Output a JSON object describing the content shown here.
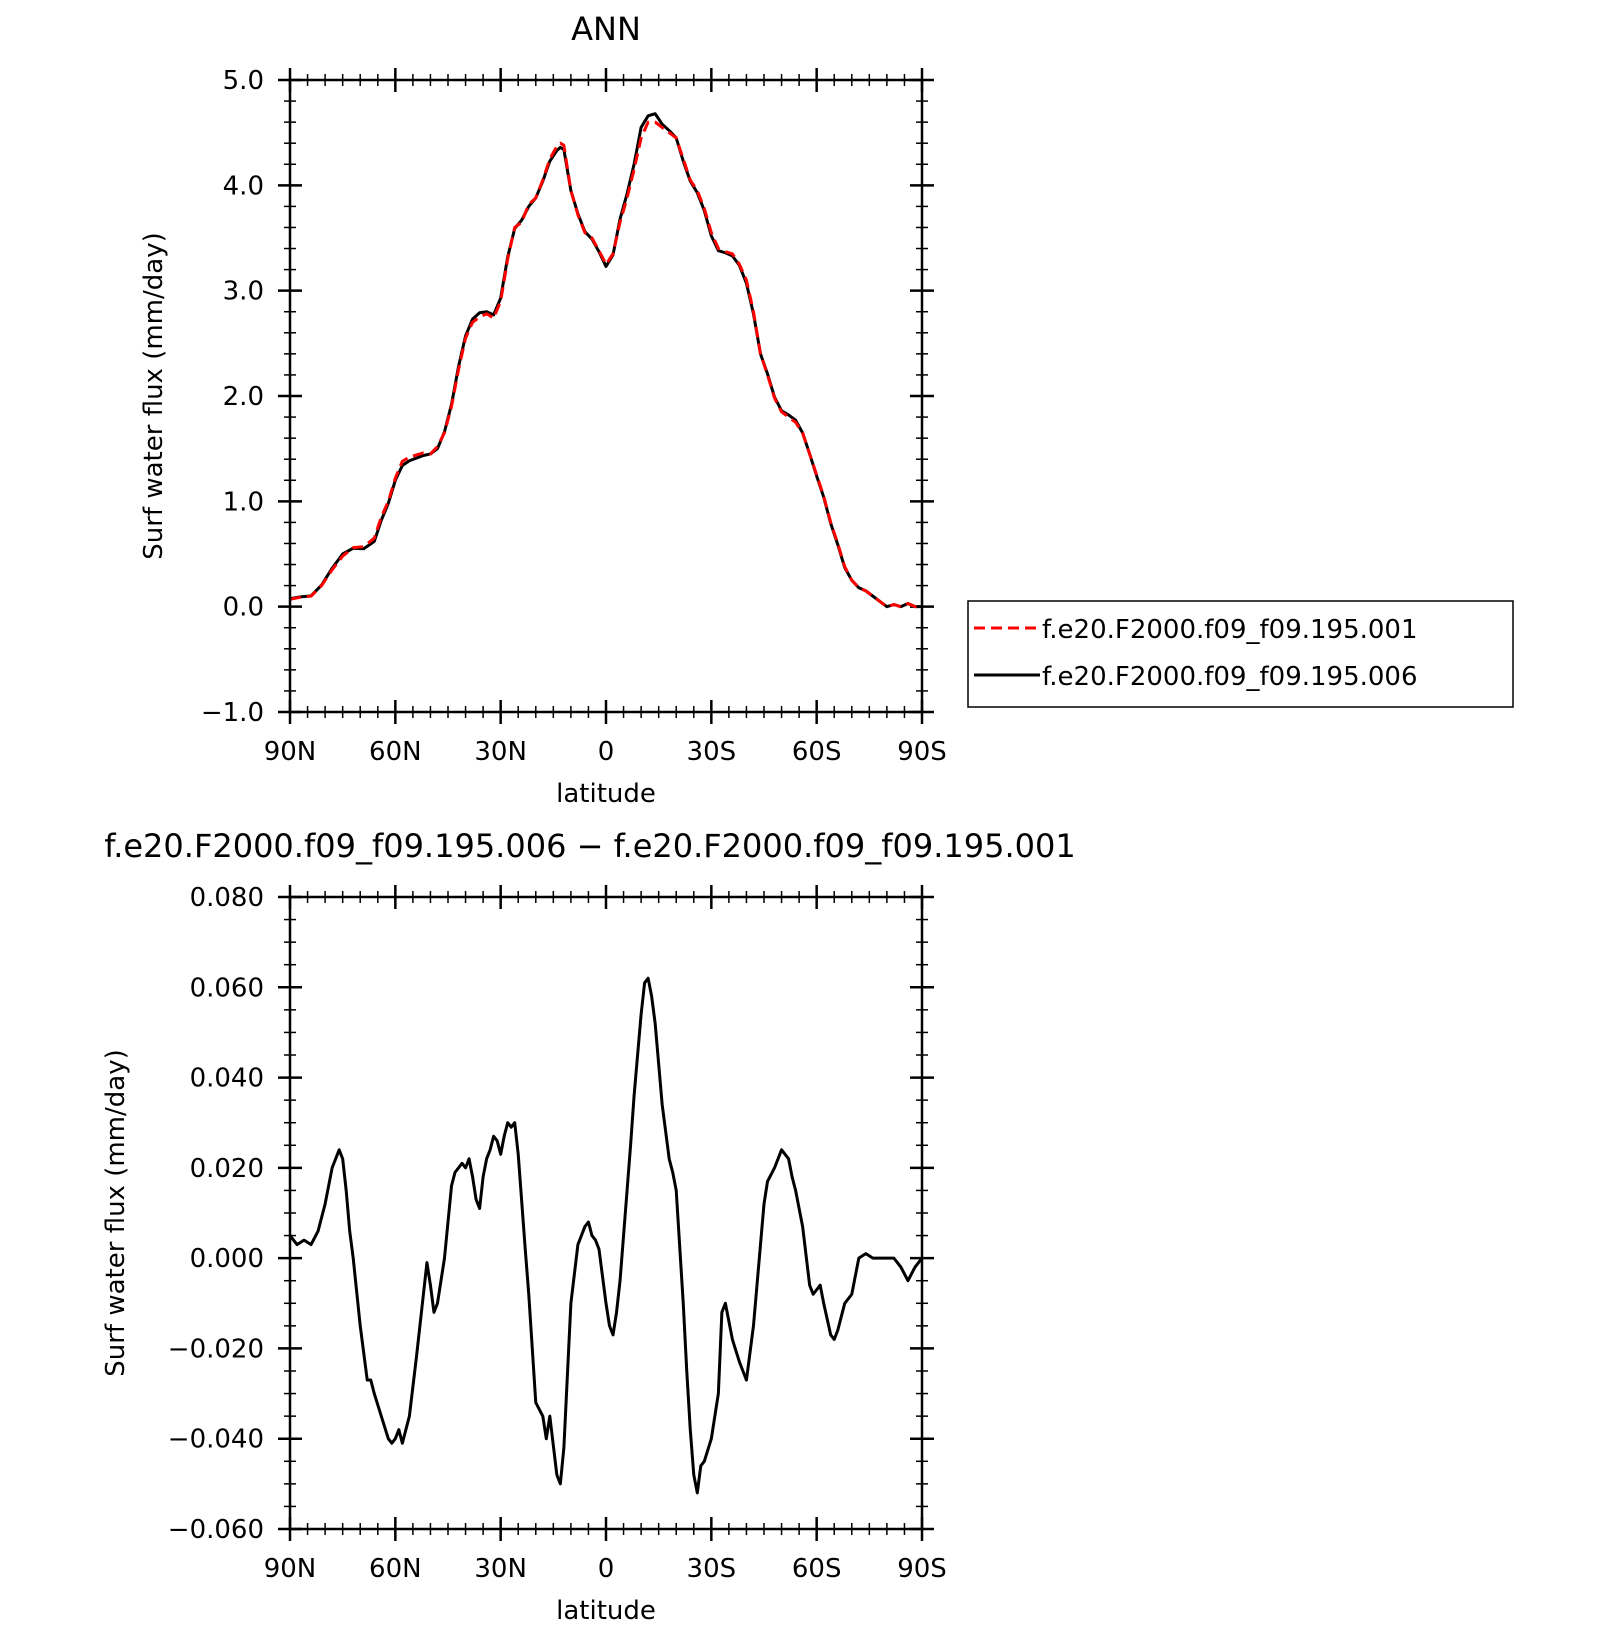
{
  "chart_data": [
    {
      "type": "line",
      "title": "ANN",
      "xlabel": "latitude",
      "ylabel": "Surf water flux (mm/day)",
      "xlim": [
        90,
        -90
      ],
      "ylim": [
        -1.0,
        5.0
      ],
      "x_ticks": [
        {
          "value": 90,
          "label": "90N"
        },
        {
          "value": 60,
          "label": "60N"
        },
        {
          "value": 30,
          "label": "30N"
        },
        {
          "value": 0,
          "label": "0"
        },
        {
          "value": -30,
          "label": "30S"
        },
        {
          "value": -60,
          "label": "60S"
        },
        {
          "value": -90,
          "label": "90S"
        }
      ],
      "y_ticks": [
        {
          "value": 5.0,
          "label": "5.0"
        },
        {
          "value": 4.0,
          "label": "4.0"
        },
        {
          "value": 3.0,
          "label": "3.0"
        },
        {
          "value": 2.0,
          "label": "2.0"
        },
        {
          "value": 1.0,
          "label": "1.0"
        },
        {
          "value": 0.0,
          "label": "0.0"
        },
        {
          "value": -1.0,
          "label": "−1.0"
        }
      ],
      "legend_position": "right",
      "x": [
        90,
        87,
        84,
        81,
        78,
        75,
        72,
        69,
        66,
        64,
        62,
        60,
        58,
        56,
        54,
        52,
        50,
        48,
        46,
        44,
        42,
        40,
        38,
        36,
        34,
        32,
        30,
        28,
        26,
        24,
        22,
        20,
        18,
        16,
        14,
        13,
        12,
        10,
        8,
        6,
        4,
        2,
        0,
        -2,
        -4,
        -6,
        -8,
        -10,
        -12,
        -14,
        -16,
        -18,
        -20,
        -22,
        -24,
        -26,
        -28,
        -30,
        -32,
        -34,
        -36,
        -38,
        -40,
        -42,
        -44,
        -46,
        -48,
        -50,
        -52,
        -54,
        -56,
        -58,
        -60,
        -62,
        -64,
        -66,
        -68,
        -70,
        -72,
        -74,
        -76,
        -78,
        -80,
        -82,
        -84,
        -86,
        -88,
        -90
      ],
      "series": [
        {
          "name": "f.e20.F2000.f09_f09.195.001",
          "color": "#ff0000",
          "dash": "dashed",
          "values": [
            0.07,
            0.09,
            0.1,
            0.2,
            0.35,
            0.48,
            0.56,
            0.57,
            0.65,
            0.85,
            1.0,
            1.22,
            1.38,
            1.42,
            1.44,
            1.46,
            1.45,
            1.52,
            1.65,
            1.9,
            2.25,
            2.55,
            2.7,
            2.75,
            2.78,
            2.74,
            2.9,
            3.3,
            3.6,
            3.65,
            3.82,
            3.88,
            4.05,
            4.25,
            4.37,
            4.4,
            4.38,
            3.95,
            3.72,
            3.55,
            3.5,
            3.38,
            3.25,
            3.35,
            3.65,
            3.88,
            4.15,
            4.45,
            4.6,
            4.6,
            4.55,
            4.5,
            4.45,
            4.25,
            4.05,
            3.95,
            3.78,
            3.55,
            3.4,
            3.37,
            3.35,
            3.25,
            3.1,
            2.8,
            2.4,
            2.2,
            1.98,
            1.85,
            1.8,
            1.75,
            1.65,
            1.45,
            1.25,
            1.05,
            0.8,
            0.6,
            0.38,
            0.25,
            0.18,
            0.15,
            0.1,
            0.05,
            0.0,
            0.02,
            0.0,
            0.03,
            0.0,
            0.0
          ]
        },
        {
          "name": "f.e20.F2000.f09_f09.195.006",
          "color": "#000000",
          "dash": "solid",
          "values": [
            0.075,
            0.093,
            0.103,
            0.205,
            0.365,
            0.5,
            0.555,
            0.55,
            0.62,
            0.82,
            0.98,
            1.2,
            1.34,
            1.385,
            1.41,
            1.435,
            1.45,
            1.5,
            1.66,
            1.92,
            2.28,
            2.57,
            2.73,
            2.79,
            2.8,
            2.77,
            2.93,
            3.32,
            3.59,
            3.67,
            3.8,
            3.88,
            4.04,
            4.23,
            4.33,
            4.36,
            4.34,
            3.95,
            3.73,
            3.56,
            3.49,
            3.37,
            3.23,
            3.34,
            3.68,
            3.92,
            4.2,
            4.55,
            4.66,
            4.68,
            4.58,
            4.52,
            4.45,
            4.23,
            4.04,
            3.93,
            3.76,
            3.52,
            3.38,
            3.36,
            3.33,
            3.24,
            3.07,
            2.78,
            2.4,
            2.21,
            1.99,
            1.86,
            1.82,
            1.77,
            1.65,
            1.45,
            1.24,
            1.04,
            0.79,
            0.59,
            0.37,
            0.25,
            0.18,
            0.15,
            0.1,
            0.05,
            0.0,
            0.02,
            0.0,
            0.03,
            0.0,
            0.0
          ]
        }
      ]
    },
    {
      "type": "line",
      "title": "f.e20.F2000.f09_f09.195.006 − f.e20.F2000.f09_f09.195.001",
      "xlabel": "latitude",
      "ylabel": "Surf water flux (mm/day)",
      "xlim": [
        90,
        -90
      ],
      "ylim": [
        -0.06,
        0.08
      ],
      "x_ticks": [
        {
          "value": 90,
          "label": "90N"
        },
        {
          "value": 60,
          "label": "60N"
        },
        {
          "value": 30,
          "label": "30N"
        },
        {
          "value": 0,
          "label": "0"
        },
        {
          "value": -30,
          "label": "30S"
        },
        {
          "value": -60,
          "label": "60S"
        },
        {
          "value": -90,
          "label": "90S"
        }
      ],
      "y_ticks": [
        {
          "value": 0.08,
          "label": "0.080"
        },
        {
          "value": 0.06,
          "label": "0.060"
        },
        {
          "value": 0.04,
          "label": "0.040"
        },
        {
          "value": 0.02,
          "label": "0.020"
        },
        {
          "value": 0.0,
          "label": "0.000"
        },
        {
          "value": -0.02,
          "label": "−0.020"
        },
        {
          "value": -0.04,
          "label": "−0.040"
        },
        {
          "value": -0.06,
          "label": "−0.060"
        }
      ],
      "x": [
        90,
        88,
        86,
        84,
        82,
        80,
        78,
        76,
        75,
        74,
        73,
        72,
        70,
        68,
        67,
        66,
        64,
        62,
        61,
        60,
        59,
        58,
        56,
        54,
        52,
        51,
        50,
        49,
        48,
        46,
        44,
        43,
        42,
        41,
        40,
        39,
        38,
        37,
        36,
        35,
        34,
        33,
        32,
        31,
        30,
        29,
        28,
        27,
        26,
        25,
        23,
        22,
        20,
        18,
        17,
        16,
        14,
        13,
        12,
        11,
        10,
        8,
        6,
        5,
        4,
        3,
        2,
        0,
        -1,
        -2,
        -3,
        -4,
        -5,
        -6,
        -7,
        -8,
        -10,
        -11,
        -12,
        -13,
        -14,
        -16,
        -17,
        -18,
        -19,
        -20,
        -22,
        -23,
        -24,
        -25,
        -26,
        -27,
        -28,
        -30,
        -32,
        -33,
        -34,
        -36,
        -38,
        -39,
        -40,
        -42,
        -44,
        -45,
        -46,
        -48,
        -50,
        -52,
        -53,
        -54,
        -56,
        -58,
        -59,
        -60,
        -61,
        -62,
        -64,
        -65,
        -66,
        -68,
        -70,
        -72,
        -74,
        -76,
        -78,
        -80,
        -82,
        -84,
        -86,
        -88,
        -90
      ],
      "series": [
        {
          "name": "",
          "color": "#000000",
          "dash": "solid",
          "values": [
            0.005,
            0.003,
            0.004,
            0.003,
            0.006,
            0.012,
            0.02,
            0.024,
            0.022,
            0.015,
            0.006,
            0.0,
            -0.015,
            -0.027,
            -0.027,
            -0.03,
            -0.035,
            -0.04,
            -0.041,
            -0.04,
            -0.038,
            -0.041,
            -0.035,
            -0.022,
            -0.008,
            -0.001,
            -0.006,
            -0.012,
            -0.01,
            0.0,
            0.016,
            0.019,
            0.02,
            0.021,
            0.02,
            0.022,
            0.018,
            0.013,
            0.011,
            0.018,
            0.022,
            0.024,
            0.027,
            0.026,
            0.023,
            0.027,
            0.03,
            0.029,
            0.03,
            0.023,
            0.002,
            -0.008,
            -0.032,
            -0.035,
            -0.04,
            -0.035,
            -0.048,
            -0.05,
            -0.042,
            -0.026,
            -0.01,
            0.003,
            0.007,
            0.008,
            0.005,
            0.004,
            0.002,
            -0.01,
            -0.015,
            -0.017,
            -0.012,
            -0.005,
            0.005,
            0.015,
            0.025,
            0.036,
            0.054,
            0.061,
            0.062,
            0.058,
            0.052,
            0.034,
            0.028,
            0.022,
            0.019,
            0.015,
            -0.01,
            -0.025,
            -0.038,
            -0.048,
            -0.052,
            -0.046,
            -0.045,
            -0.04,
            -0.03,
            -0.012,
            -0.01,
            -0.018,
            -0.023,
            -0.025,
            -0.027,
            -0.015,
            0.003,
            0.012,
            0.017,
            0.02,
            0.024,
            0.022,
            0.018,
            0.015,
            0.007,
            -0.006,
            -0.008,
            -0.007,
            -0.006,
            -0.01,
            -0.017,
            -0.018,
            -0.016,
            -0.01,
            -0.008,
            0.0,
            0.001,
            0.0,
            0.0,
            0.0,
            0.0,
            -0.002,
            -0.005,
            -0.002,
            0.0
          ]
        }
      ]
    }
  ]
}
